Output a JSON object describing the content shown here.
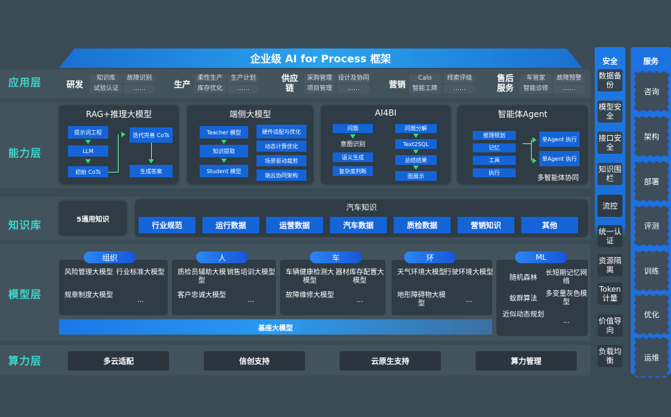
{
  "title": "企业级 AI for Process 框架",
  "layers": {
    "app": "应用层",
    "capability": "能力层",
    "knowledge": "知识库",
    "model": "模型层",
    "compute": "算力层"
  },
  "app_groups": [
    {
      "name": "研发",
      "items": [
        "知识库",
        "故障识别",
        "试验认证",
        "……"
      ]
    },
    {
      "name": "生产",
      "items": [
        "柔性生产",
        "生产计划",
        "库存优化",
        "……"
      ]
    },
    {
      "name": "供应链",
      "items": [
        "采购管理",
        "设计及协同",
        "项目管理",
        "……"
      ]
    },
    {
      "name": "营销",
      "items": [
        "Calo",
        "线索评级",
        "智能工牌",
        "……"
      ]
    },
    {
      "name": "售后服务",
      "items": [
        "车管家",
        "故障预警",
        "智能诊修",
        "……"
      ]
    }
  ],
  "capability": {
    "rag": {
      "title": "RAG+推理大模型",
      "items": [
        "提示词工程",
        "LLM",
        "初始 CoTs",
        "迭代完善 CoTs",
        "生成答案"
      ]
    },
    "edge": {
      "title": "端侧大模型",
      "items": [
        "Teacher 模型",
        "知识提取",
        "Student 模型",
        "硬件适配与优化",
        "动态计算优化",
        "场景驱动裁剪",
        "端云协同架构"
      ]
    },
    "ai4bi": {
      "title": "AI4BI",
      "items": [
        "问题",
        "意图识别",
        "语义生成",
        "复杂度判断",
        "问题分解",
        "Text2SQL",
        "总结结果",
        "图展示"
      ]
    },
    "agent": {
      "title": "智能体Agent",
      "items": [
        "推理规划",
        "记忆",
        "工具",
        "执行",
        "单Agent 执行",
        "单Agent 执行",
        "多智能体协同"
      ]
    }
  },
  "knowledge": {
    "general": "5通用知识",
    "auto_title": "汽车知识",
    "auto_items": [
      "行业规范",
      "运行数据",
      "运营数据",
      "汽车数据",
      "质检数据",
      "营销知识",
      "其他"
    ]
  },
  "model": {
    "groups": [
      {
        "name": "组织",
        "items": [
          "风险管理大模型",
          "行业标准大模型",
          "规章制度大模型",
          "..."
        ]
      },
      {
        "name": "人",
        "items": [
          "质检员辅助大模型",
          "销售培训大模型",
          "客户忠诚大模型",
          "..."
        ]
      },
      {
        "name": "车",
        "items": [
          "车辆健康检测大模型",
          "器材库存配置大模型",
          "故障维修大模型",
          "..."
        ]
      },
      {
        "name": "环",
        "items": [
          "天气环境大模型",
          "行驶环境大模型",
          "地形障碍物大模型",
          "..."
        ]
      },
      {
        "name": "ML",
        "items": [
          "随机森林",
          "长短期记忆网络",
          "蚁群算法",
          "多变量灰色模型",
          "近似动态规划",
          "..."
        ]
      }
    ],
    "base": "基座大模型"
  },
  "compute": [
    "多云适配",
    "信创支持",
    "云原生支持",
    "算力管理"
  ],
  "security": {
    "title": "安全",
    "items": [
      "数据备份",
      "模型安全",
      "接口安全",
      "知识围栏",
      "流控",
      "统一认证",
      "资源隔离",
      "Token计量",
      "价值导向",
      "负载均衡"
    ]
  },
  "services": {
    "title": "服务",
    "items": [
      "咨询",
      "架构",
      "部署",
      "评测",
      "训练",
      "优化",
      "运维"
    ]
  },
  "colors": {
    "accent_blue": "#1464d8",
    "layer_label": "#3fd6c9",
    "background": "#3b4b56"
  }
}
